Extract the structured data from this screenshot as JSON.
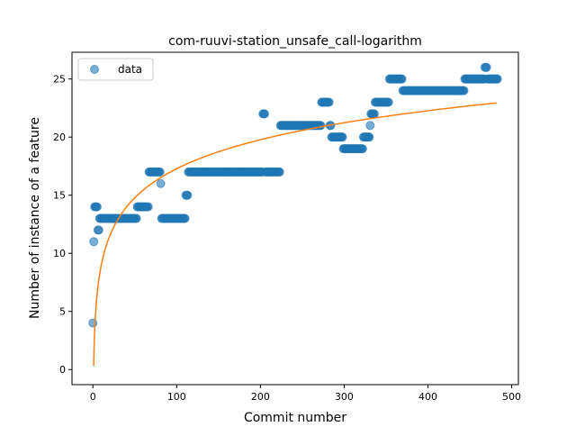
{
  "chart_data": {
    "type": "scatter",
    "title": "com-ruuvi-station_unsafe_call-logarithm",
    "xlabel": "Commit number",
    "ylabel": "Number of instance of a feature",
    "xlim": [
      -25,
      508
    ],
    "ylim": [
      -1.3,
      27.3
    ],
    "xticks": [
      0,
      100,
      200,
      300,
      400,
      500
    ],
    "yticks": [
      0,
      5,
      10,
      15,
      20,
      25
    ],
    "legend": {
      "position": "top-left",
      "entries": [
        "data"
      ]
    },
    "grid": false,
    "series": [
      {
        "name": "data",
        "kind": "points",
        "color": "#1f77b4",
        "alpha": 0.6,
        "segments": [
          {
            "from": 0,
            "to": 0,
            "y": 4
          },
          {
            "from": 1,
            "to": 1,
            "y": 11
          },
          {
            "from": 2,
            "to": 5,
            "y": 14
          },
          {
            "from": 6,
            "to": 7,
            "y": 12
          },
          {
            "from": 8,
            "to": 52,
            "y": 13
          },
          {
            "from": 53,
            "to": 66,
            "y": 14
          },
          {
            "from": 67,
            "to": 80,
            "y": 17
          },
          {
            "from": 81,
            "to": 81,
            "y": 16
          },
          {
            "from": 82,
            "to": 110,
            "y": 13
          },
          {
            "from": 111,
            "to": 113,
            "y": 15
          },
          {
            "from": 114,
            "to": 202,
            "y": 17
          },
          {
            "from": 203,
            "to": 205,
            "y": 22
          },
          {
            "from": 206,
            "to": 223,
            "y": 17
          },
          {
            "from": 224,
            "to": 272,
            "y": 21
          },
          {
            "from": 273,
            "to": 282,
            "y": 23
          },
          {
            "from": 283,
            "to": 284,
            "y": 21
          },
          {
            "from": 285,
            "to": 298,
            "y": 20
          },
          {
            "from": 299,
            "to": 322,
            "y": 19
          },
          {
            "from": 323,
            "to": 330,
            "y": 20
          },
          {
            "from": 331,
            "to": 331,
            "y": 21
          },
          {
            "from": 332,
            "to": 336,
            "y": 22
          },
          {
            "from": 337,
            "to": 353,
            "y": 23
          },
          {
            "from": 354,
            "to": 369,
            "y": 25
          },
          {
            "from": 370,
            "to": 443,
            "y": 24
          },
          {
            "from": 444,
            "to": 467,
            "y": 25
          },
          {
            "from": 468,
            "to": 470,
            "y": 26
          },
          {
            "from": 471,
            "to": 483,
            "y": 25
          }
        ]
      },
      {
        "name": "",
        "kind": "curve",
        "color": "#ff7f0e",
        "model": "a*ln(x)+b",
        "a": 3.6,
        "b": 0.7,
        "x_start": 0.9,
        "x_end": 482
      }
    ]
  }
}
